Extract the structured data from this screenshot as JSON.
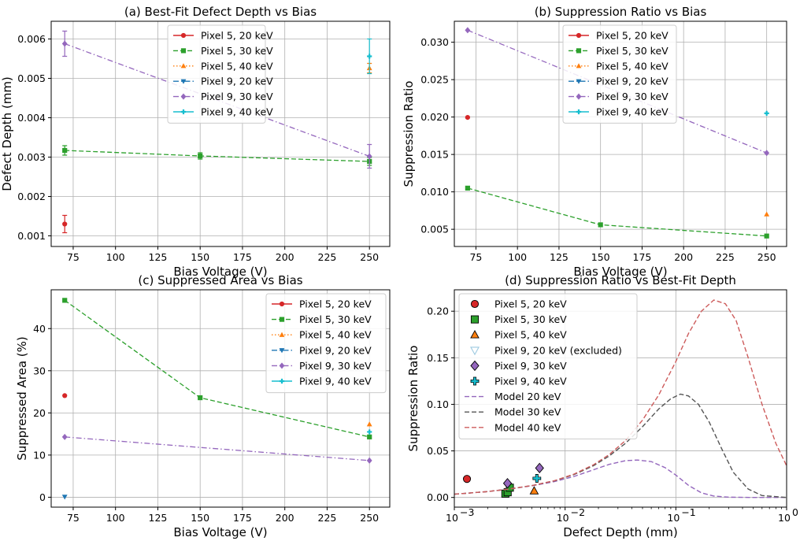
{
  "chart_data": [
    {
      "id": "a",
      "type": "line",
      "title": "(a) Best-Fit Defect Depth vs Bias",
      "xlabel": "Bias Voltage (V)",
      "ylabel": "Defect Depth (mm)",
      "xlim": [
        62,
        262
      ],
      "ylim": [
        0.00073,
        0.00645
      ],
      "xticks": [
        75,
        100,
        125,
        150,
        175,
        200,
        225,
        250
      ],
      "yticks": [
        0.001,
        0.002,
        0.003,
        0.004,
        0.005,
        0.006
      ],
      "ytick_labels": [
        "0.001",
        "0.002",
        "0.003",
        "0.004",
        "0.005",
        "0.006"
      ],
      "xscale": "linear",
      "grid": true,
      "legend": "upper center",
      "series": [
        {
          "name": "Pixel 5, 20 keV",
          "color": "#d62728",
          "marker": "circle",
          "dash": "solid",
          "x": [
            70
          ],
          "y": [
            0.0013
          ],
          "yerr": [
            0.00022
          ]
        },
        {
          "name": "Pixel 5, 30 keV",
          "color": "#2ca02c",
          "marker": "square",
          "dash": "dashed",
          "x": [
            70,
            150,
            250
          ],
          "y": [
            0.00317,
            0.00303,
            0.00289
          ],
          "yerr": [
            0.00012,
            8e-05,
            0.0001
          ]
        },
        {
          "name": "Pixel 5, 40 keV",
          "color": "#ff7f0e",
          "marker": "triangle",
          "dash": "dotted",
          "x": [
            250
          ],
          "y": [
            0.00526
          ],
          "yerr": [
            0.00012
          ]
        },
        {
          "name": "Pixel 9, 20 keV",
          "color": "#1f77b4",
          "marker": "triangle-down",
          "dash": "dashdot",
          "x": [],
          "y": []
        },
        {
          "name": "Pixel 9, 30 keV",
          "color": "#9467bd",
          "marker": "diamond",
          "dash": "dashdot",
          "x": [
            70,
            250
          ],
          "y": [
            0.00588,
            0.00302
          ],
          "yerr": [
            0.00032,
            0.0003
          ]
        },
        {
          "name": "Pixel 9, 40 keV",
          "color": "#17becf",
          "marker": "plus",
          "dash": "solid",
          "x": [
            250
          ],
          "y": [
            0.00556
          ],
          "yerr": [
            0.00044
          ]
        }
      ]
    },
    {
      "id": "b",
      "type": "line",
      "title": "(b) Suppression Ratio vs Bias",
      "xlabel": "Bias Voltage (V)",
      "ylabel": "Suppression Ratio",
      "xlim": [
        62,
        262
      ],
      "ylim": [
        0.0027,
        0.0328
      ],
      "xticks": [
        75,
        100,
        125,
        150,
        175,
        200,
        225,
        250
      ],
      "yticks": [
        0.005,
        0.01,
        0.015,
        0.02,
        0.025,
        0.03
      ],
      "ytick_labels": [
        "0.005",
        "0.010",
        "0.015",
        "0.020",
        "0.025",
        "0.030"
      ],
      "xscale": "linear",
      "grid": true,
      "legend": "upper center",
      "series": [
        {
          "name": "Pixel 5, 20 keV",
          "color": "#d62728",
          "marker": "circle",
          "dash": "solid",
          "x": [
            70
          ],
          "y": [
            0.01995
          ]
        },
        {
          "name": "Pixel 5, 30 keV",
          "color": "#2ca02c",
          "marker": "square",
          "dash": "dashed",
          "x": [
            70,
            150,
            250
          ],
          "y": [
            0.0105,
            0.0056,
            0.0041
          ]
        },
        {
          "name": "Pixel 5, 40 keV",
          "color": "#ff7f0e",
          "marker": "triangle",
          "dash": "dotted",
          "x": [
            250
          ],
          "y": [
            0.007
          ]
        },
        {
          "name": "Pixel 9, 20 keV",
          "color": "#1f77b4",
          "marker": "triangle-down",
          "dash": "dashdot",
          "x": [],
          "y": []
        },
        {
          "name": "Pixel 9, 30 keV",
          "color": "#9467bd",
          "marker": "diamond",
          "dash": "dashdot",
          "x": [
            70,
            250
          ],
          "y": [
            0.0316,
            0.0152
          ]
        },
        {
          "name": "Pixel 9, 40 keV",
          "color": "#17becf",
          "marker": "plus",
          "dash": "solid",
          "x": [
            250
          ],
          "y": [
            0.0205
          ]
        }
      ]
    },
    {
      "id": "c",
      "type": "line",
      "title": "(c) Suppressed Area vs Bias",
      "xlabel": "Bias Voltage (V)",
      "ylabel": "Suppressed Area (%)",
      "xlim": [
        62,
        262
      ],
      "ylim": [
        -2.35,
        49.2
      ],
      "xticks": [
        75,
        100,
        125,
        150,
        175,
        200,
        225,
        250
      ],
      "yticks": [
        0,
        10,
        20,
        30,
        40
      ],
      "ytick_labels": [
        "0",
        "10",
        "20",
        "30",
        "40"
      ],
      "xscale": "linear",
      "grid": true,
      "legend": "upper right",
      "series": [
        {
          "name": "Pixel 5, 20 keV",
          "color": "#d62728",
          "marker": "circle",
          "dash": "solid",
          "x": [
            70
          ],
          "y": [
            24.1
          ]
        },
        {
          "name": "Pixel 5, 30 keV",
          "color": "#2ca02c",
          "marker": "square",
          "dash": "dashed",
          "x": [
            70,
            150,
            250
          ],
          "y": [
            46.7,
            23.6,
            14.3
          ]
        },
        {
          "name": "Pixel 5, 40 keV",
          "color": "#ff7f0e",
          "marker": "triangle",
          "dash": "dotted",
          "x": [
            250
          ],
          "y": [
            17.3
          ]
        },
        {
          "name": "Pixel 9, 20 keV",
          "color": "#1f77b4",
          "marker": "triangle-down",
          "dash": "dashdot",
          "x": [
            70
          ],
          "y": [
            0.1
          ]
        },
        {
          "name": "Pixel 9, 30 keV",
          "color": "#9467bd",
          "marker": "diamond",
          "dash": "dashdot",
          "x": [
            70,
            250
          ],
          "y": [
            14.3,
            8.7
          ]
        },
        {
          "name": "Pixel 9, 40 keV",
          "color": "#17becf",
          "marker": "plus",
          "dash": "solid",
          "x": [
            250
          ],
          "y": [
            15.5
          ]
        }
      ]
    },
    {
      "id": "d",
      "type": "scatter",
      "title": "(d) Suppression Ratio vs Best-Fit Depth",
      "xlabel": "Defect Depth (mm)",
      "ylabel": "Suppression Ratio",
      "xlim": [
        0.001,
        1
      ],
      "ylim": [
        -0.0104,
        0.223
      ],
      "xticks": [
        0.001,
        0.01,
        0.1,
        1
      ],
      "xtick_labels": [
        "10",
        "10",
        "10",
        "10"
      ],
      "xtick_exps": [
        "−3",
        "−2",
        "−1",
        "0"
      ],
      "yticks": [
        0,
        0.05,
        0.1,
        0.15,
        0.2
      ],
      "ytick_labels": [
        "0.00",
        "0.05",
        "0.10",
        "0.15",
        "0.20"
      ],
      "xscale": "log",
      "grid": true,
      "legend": "upper left",
      "series": [
        {
          "name": "Pixel 5, 20 keV",
          "color": "#d62728",
          "marker": "circle",
          "kind": "scatter",
          "x": [
            0.0013
          ],
          "y": [
            0.0199
          ]
        },
        {
          "name": "Pixel 5, 30 keV",
          "color": "#2ca02c",
          "marker": "square",
          "kind": "scatter",
          "x": [
            0.00289,
            0.00303,
            0.00317
          ],
          "y": [
            0.0041,
            0.0056,
            0.0105
          ]
        },
        {
          "name": "Pixel 5, 40 keV",
          "color": "#ff7f0e",
          "marker": "triangle",
          "kind": "scatter",
          "x": [
            0.00526
          ],
          "y": [
            0.007
          ]
        },
        {
          "name": "Pixel 9, 20 keV (excluded)",
          "color": "#9ecae1",
          "marker": "triangle-down-open",
          "kind": "scatter",
          "x": [],
          "y": []
        },
        {
          "name": "Pixel 9, 30 keV",
          "color": "#9467bd",
          "marker": "diamond",
          "kind": "scatter",
          "x": [
            0.00302,
            0.00588
          ],
          "y": [
            0.0152,
            0.0316
          ]
        },
        {
          "name": "Pixel 9, 40 keV",
          "color": "#17becf",
          "marker": "plus",
          "kind": "scatter",
          "x": [
            0.00556
          ],
          "y": [
            0.0205
          ]
        },
        {
          "name": "Model 20 keV",
          "color": "#9467bd",
          "marker": "none",
          "dash": "dashed",
          "kind": "line",
          "x": [
            0.001,
            0.002,
            0.003,
            0.005,
            0.008,
            0.012,
            0.018,
            0.025,
            0.035,
            0.045,
            0.06,
            0.08,
            0.1,
            0.13,
            0.17,
            0.22,
            0.3,
            0.5,
            1
          ],
          "y": [
            0.0035,
            0.0063,
            0.0088,
            0.0125,
            0.017,
            0.0225,
            0.0297,
            0.0355,
            0.0395,
            0.0402,
            0.0385,
            0.032,
            0.024,
            0.013,
            0.005,
            0.0015,
            0.0003,
            0.0,
            0.0
          ]
        },
        {
          "name": "Model 30 keV",
          "color": "#555555",
          "marker": "none",
          "dash": "dashed",
          "kind": "line",
          "x": [
            0.001,
            0.002,
            0.003,
            0.005,
            0.008,
            0.012,
            0.018,
            0.025,
            0.035,
            0.05,
            0.07,
            0.09,
            0.11,
            0.13,
            0.16,
            0.2,
            0.26,
            0.33,
            0.45,
            0.6,
            1
          ],
          "y": [
            0.0035,
            0.0063,
            0.0088,
            0.0127,
            0.0178,
            0.0245,
            0.034,
            0.0445,
            0.058,
            0.076,
            0.095,
            0.106,
            0.111,
            0.109,
            0.1,
            0.081,
            0.052,
            0.027,
            0.009,
            0.002,
            0.0
          ]
        },
        {
          "name": "Model 40 keV",
          "color": "#cd5c5c",
          "marker": "none",
          "dash": "dashed",
          "kind": "line",
          "x": [
            0.001,
            0.002,
            0.003,
            0.005,
            0.008,
            0.012,
            0.018,
            0.025,
            0.035,
            0.05,
            0.07,
            0.1,
            0.13,
            0.17,
            0.22,
            0.28,
            0.35,
            0.45,
            0.6,
            0.8,
            1
          ],
          "y": [
            0.0035,
            0.0063,
            0.0088,
            0.0127,
            0.018,
            0.025,
            0.035,
            0.046,
            0.061,
            0.083,
            0.11,
            0.146,
            0.176,
            0.2,
            0.212,
            0.208,
            0.19,
            0.15,
            0.1,
            0.058,
            0.034
          ]
        }
      ]
    }
  ]
}
